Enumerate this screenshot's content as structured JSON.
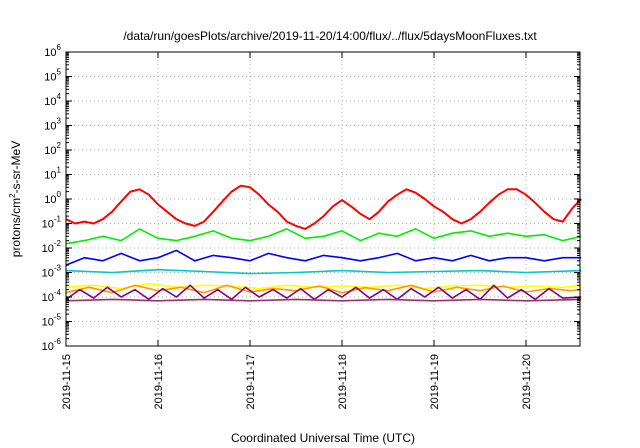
{
  "chart_data": {
    "type": "line",
    "title": "/data/run/goesPlots/archive/2019-11-20/14:00/flux/../flux/5daysMoonFluxes.txt",
    "xlabel": "Coordinated Universal Time (UTC)",
    "ylabel_parts": [
      "protons/cm",
      "2",
      "-s-sr-MeV"
    ],
    "yscale": "log",
    "ylim": [
      1e-06,
      1000000.0
    ],
    "y_exponents": [
      -6,
      -5,
      -4,
      -3,
      -2,
      -1,
      0,
      1,
      2,
      3,
      4,
      5,
      6
    ],
    "y_tick_base": "10",
    "x_domain_days": [
      0,
      5.6
    ],
    "x_tick_labels": [
      "2019-11-15",
      "2019-11-16",
      "2019-11-17",
      "2019-11-18",
      "2019-11-19",
      "2019-11-20"
    ],
    "grid": true,
    "series_colors": [
      "#ff0000",
      "#00ee00",
      "#0000ff",
      "#00c8c8",
      "#ffff00",
      "#ff9900",
      "#800080",
      "#993366"
    ],
    "series": [
      {
        "color": "#ff0000",
        "x": [
          0,
          0.1,
          0.2,
          0.3,
          0.4,
          0.5,
          0.6,
          0.7,
          0.8,
          0.9,
          1.0,
          1.1,
          1.2,
          1.3,
          1.4,
          1.5,
          1.6,
          1.7,
          1.8,
          1.9,
          2.0,
          2.1,
          2.2,
          2.3,
          2.4,
          2.5,
          2.6,
          2.7,
          2.8,
          2.9,
          3.0,
          3.1,
          3.2,
          3.3,
          3.4,
          3.5,
          3.6,
          3.7,
          3.8,
          3.9,
          4.0,
          4.1,
          4.2,
          4.3,
          4.4,
          4.5,
          4.6,
          4.7,
          4.8,
          4.9,
          5.0,
          5.1,
          5.2,
          5.3,
          5.4,
          5.5,
          5.6
        ],
        "y": [
          0.15,
          0.1,
          0.12,
          0.1,
          0.15,
          0.3,
          0.8,
          2.0,
          2.5,
          1.5,
          0.6,
          0.3,
          0.15,
          0.1,
          0.08,
          0.12,
          0.3,
          0.8,
          2.0,
          3.5,
          3.0,
          1.5,
          0.6,
          0.3,
          0.12,
          0.08,
          0.06,
          0.1,
          0.2,
          0.5,
          0.9,
          0.5,
          0.25,
          0.15,
          0.3,
          0.8,
          1.5,
          2.5,
          1.8,
          1.0,
          0.5,
          0.3,
          0.15,
          0.1,
          0.15,
          0.3,
          0.7,
          1.5,
          2.5,
          2.5,
          1.5,
          0.7,
          0.3,
          0.15,
          0.12,
          0.4,
          1.0
        ]
      },
      {
        "color": "#00ee00",
        "x": [
          0,
          0.2,
          0.4,
          0.6,
          0.8,
          1.0,
          1.2,
          1.4,
          1.6,
          1.8,
          2.0,
          2.2,
          2.4,
          2.6,
          2.8,
          3.0,
          3.2,
          3.4,
          3.6,
          3.8,
          4.0,
          4.2,
          4.4,
          4.6,
          4.8,
          5.0,
          5.2,
          5.4,
          5.6
        ],
        "y": [
          0.015,
          0.02,
          0.03,
          0.02,
          0.06,
          0.025,
          0.02,
          0.03,
          0.05,
          0.025,
          0.02,
          0.03,
          0.06,
          0.025,
          0.03,
          0.05,
          0.02,
          0.04,
          0.03,
          0.06,
          0.025,
          0.04,
          0.05,
          0.03,
          0.04,
          0.03,
          0.035,
          0.02,
          0.03
        ]
      },
      {
        "color": "#0000ff",
        "x": [
          0,
          0.2,
          0.4,
          0.6,
          0.8,
          1.0,
          1.2,
          1.4,
          1.6,
          1.8,
          2.0,
          2.2,
          2.4,
          2.6,
          2.8,
          3.0,
          3.2,
          3.4,
          3.6,
          3.8,
          4.0,
          4.2,
          4.4,
          4.6,
          4.8,
          5.0,
          5.2,
          5.4,
          5.6
        ],
        "y": [
          0.002,
          0.004,
          0.003,
          0.006,
          0.003,
          0.004,
          0.008,
          0.003,
          0.005,
          0.004,
          0.003,
          0.006,
          0.004,
          0.003,
          0.005,
          0.004,
          0.003,
          0.004,
          0.006,
          0.003,
          0.004,
          0.003,
          0.005,
          0.003,
          0.004,
          0.004,
          0.003,
          0.004,
          0.004
        ]
      },
      {
        "color": "#00c8c8",
        "x": [
          0,
          0.5,
          1.0,
          1.5,
          2.0,
          2.5,
          3.0,
          3.5,
          4.0,
          4.5,
          5.0,
          5.6
        ],
        "y": [
          0.0012,
          0.001,
          0.0013,
          0.0011,
          0.0009,
          0.001,
          0.0012,
          0.001,
          0.0011,
          0.0012,
          0.001,
          0.0012
        ]
      },
      {
        "color": "#ffff00",
        "x": [
          0,
          0.3,
          0.6,
          0.9,
          1.2,
          1.5,
          1.8,
          2.1,
          2.4,
          2.7,
          3.0,
          3.3,
          3.6,
          3.9,
          4.2,
          4.5,
          4.8,
          5.1,
          5.4,
          5.6
        ],
        "y": [
          0.00025,
          0.0003,
          0.00022,
          0.00035,
          0.00025,
          0.0003,
          0.00028,
          0.00022,
          0.0003,
          0.00025,
          0.00028,
          0.00025,
          0.0003,
          0.00022,
          0.00028,
          0.0003,
          0.00025,
          0.00028,
          0.00025,
          0.0003
        ]
      },
      {
        "color": "#ff9900",
        "x": [
          0,
          0.25,
          0.5,
          0.75,
          1.0,
          1.25,
          1.5,
          1.75,
          2.0,
          2.25,
          2.5,
          2.75,
          3.0,
          3.25,
          3.5,
          3.75,
          4.0,
          4.25,
          4.5,
          4.75,
          5.0,
          5.25,
          5.5,
          5.6
        ],
        "y": [
          0.00015,
          0.00025,
          0.00015,
          0.0003,
          0.00018,
          0.00025,
          0.00015,
          0.0003,
          0.00016,
          0.00022,
          0.00018,
          0.00028,
          0.00015,
          0.00024,
          0.00018,
          0.0003,
          0.00016,
          0.00025,
          0.00018,
          0.00028,
          0.00016,
          0.00022,
          0.00018,
          0.0002
        ]
      },
      {
        "color": "#800080",
        "x": [
          0,
          0.15,
          0.3,
          0.45,
          0.6,
          0.75,
          0.9,
          1.05,
          1.2,
          1.35,
          1.5,
          1.65,
          1.8,
          1.95,
          2.1,
          2.25,
          2.4,
          2.55,
          2.7,
          2.85,
          3.0,
          3.15,
          3.3,
          3.45,
          3.6,
          3.75,
          3.9,
          4.05,
          4.2,
          4.35,
          4.5,
          4.65,
          4.8,
          4.95,
          5.1,
          5.25,
          5.4,
          5.6
        ],
        "y": [
          8e-05,
          0.0002,
          9e-05,
          0.00025,
          0.0001,
          0.0002,
          8e-05,
          0.00022,
          0.0001,
          0.0003,
          9e-05,
          0.0002,
          8e-05,
          0.00025,
          0.0001,
          0.0002,
          9e-05,
          0.00022,
          8e-05,
          0.0002,
          0.0001,
          0.00025,
          9e-05,
          0.0002,
          8e-05,
          0.00022,
          0.0001,
          0.00025,
          9e-05,
          0.0002,
          8e-05,
          0.0003,
          9e-05,
          0.0002,
          8e-05,
          0.00022,
          9e-05,
          0.0001
        ]
      },
      {
        "color": "#993366",
        "x": [
          0,
          0.5,
          1.0,
          1.5,
          2.0,
          2.5,
          3.0,
          3.5,
          4.0,
          4.5,
          5.0,
          5.6
        ],
        "y": [
          7e-05,
          8e-05,
          7e-05,
          8e-05,
          7e-05,
          8e-05,
          7e-05,
          8e-05,
          7e-05,
          8e-05,
          7e-05,
          8e-05
        ]
      }
    ]
  }
}
